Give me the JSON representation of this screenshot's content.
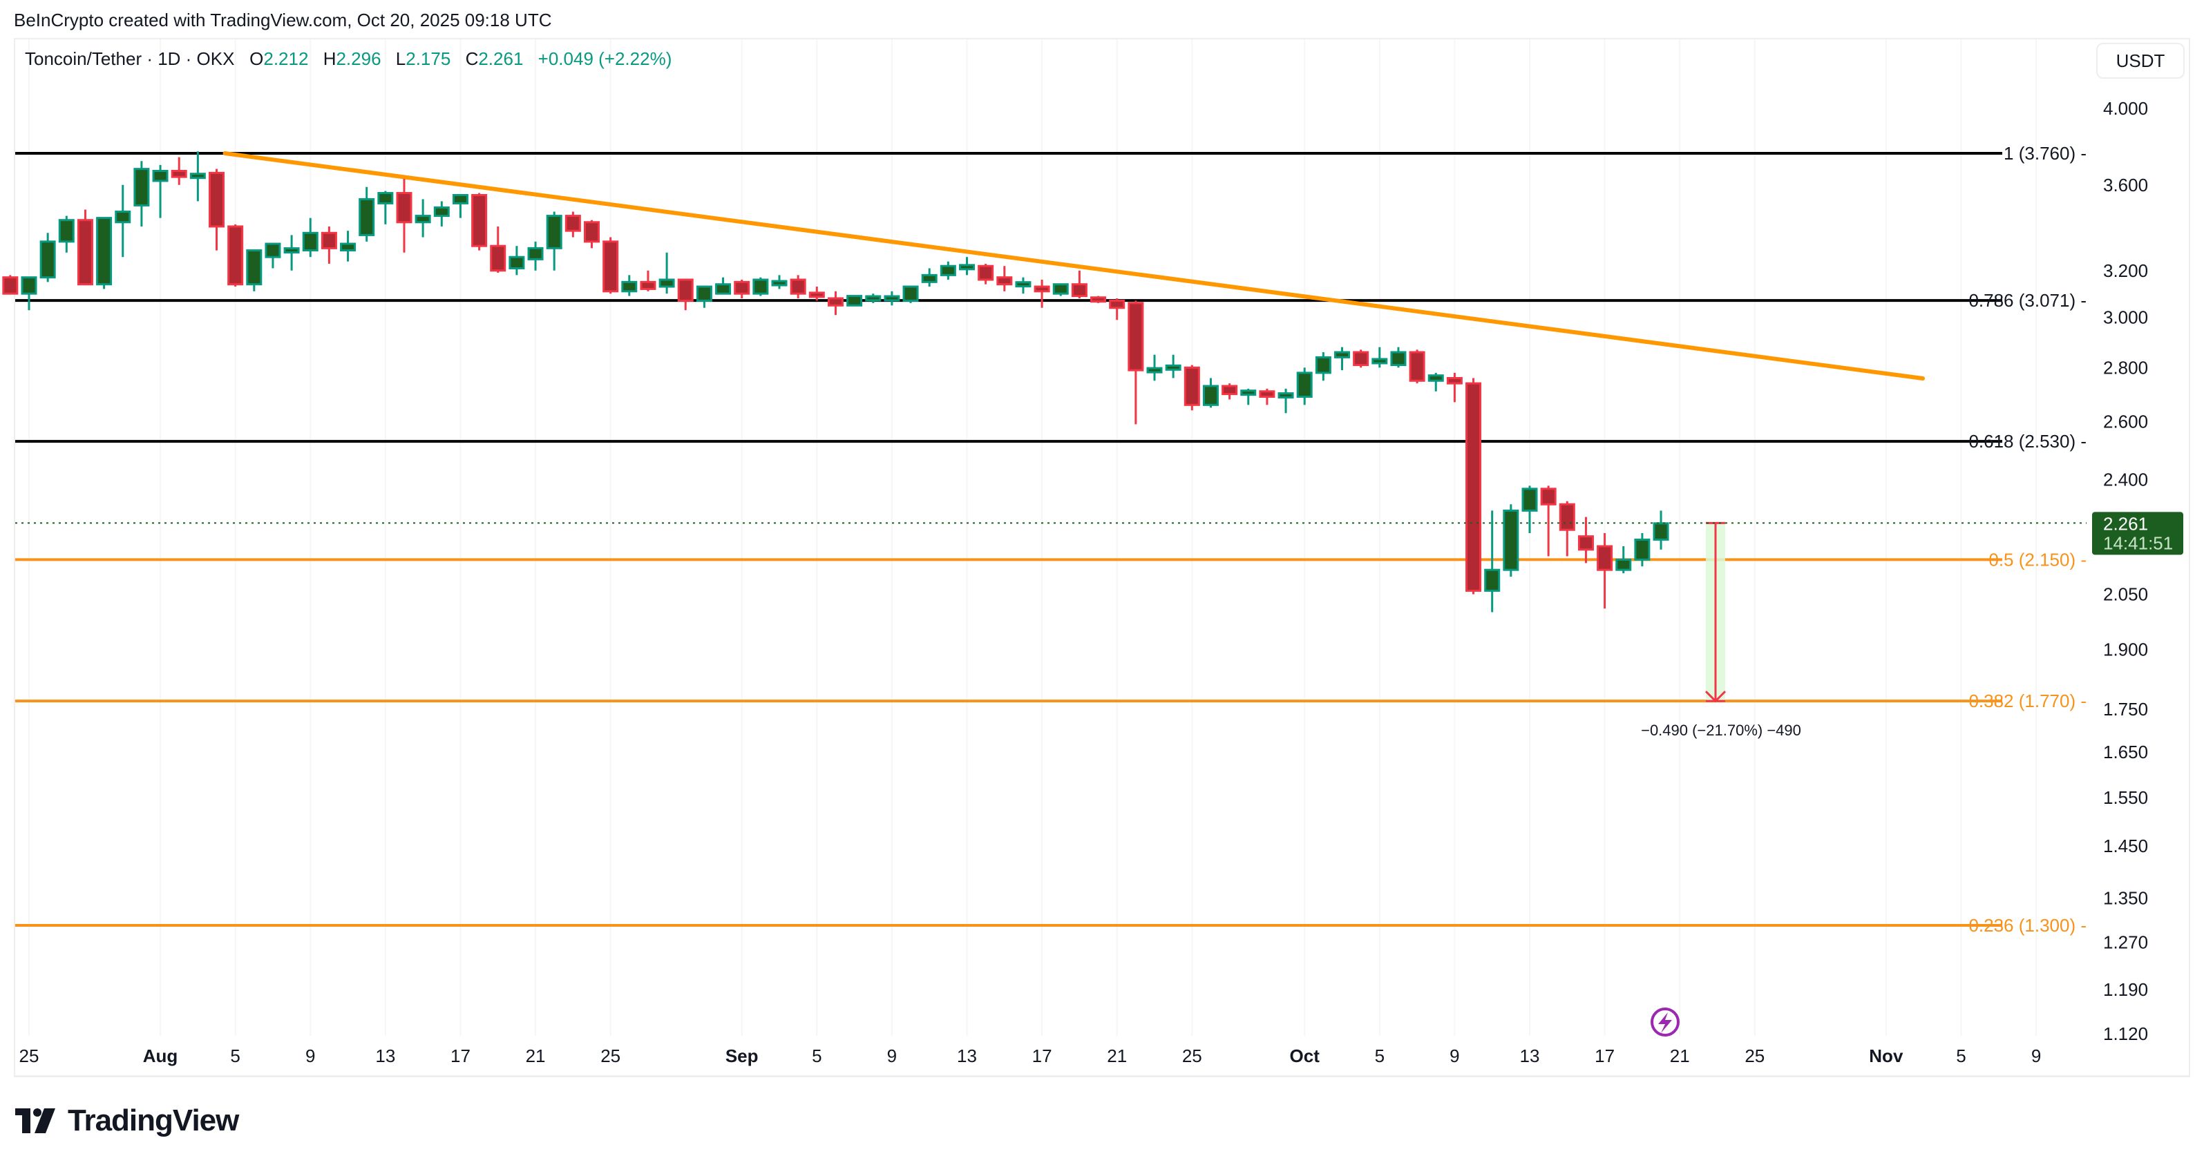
{
  "header": {
    "credit": "BeInCrypto created with TradingView.com, Oct 20, 2025 09:18 UTC"
  },
  "legend": {
    "symbol": "Toncoin/Tether · 1D · OKX",
    "open_label": "O",
    "open": "2.212",
    "high_label": "H",
    "high": "2.296",
    "low_label": "L",
    "low": "2.175",
    "close_label": "C",
    "close": "2.261",
    "change": "+0.049 (+2.22%)"
  },
  "currency_button": "USDT",
  "price_tag": {
    "price": "2.261",
    "countdown": "14:41:51",
    "color": "#1b5e20"
  },
  "measure": {
    "label": "−0.490 (−21.70%) −490",
    "from": 2.261,
    "to": 1.77
  },
  "branding": {
    "name": "TradingView"
  },
  "colors": {
    "up_body": "#1b5e20",
    "up_border": "#089981",
    "down_body": "#b22833",
    "down_border": "#f23645",
    "fib_black": "#000000",
    "fib_orange": "#f7931a",
    "trendline": "#ff9800",
    "event_icon": "#9c27b0"
  },
  "chart_data": {
    "type": "candlestick",
    "title": "Toncoin/Tether · 1D · OKX",
    "xlabel": "",
    "ylabel": "USDT",
    "yscale": "log",
    "ylim": [
      1.1,
      4.1
    ],
    "y_ticks": [
      "4.000",
      "3.600",
      "3.200",
      "3.000",
      "2.800",
      "2.600",
      "2.400",
      "2.050",
      "1.900",
      "1.750",
      "1.650",
      "1.550",
      "1.450",
      "1.350",
      "1.270",
      "1.190",
      "1.120"
    ],
    "x_ticks": [
      {
        "label": "25",
        "day": 0,
        "month": false
      },
      {
        "label": "Aug",
        "day": 7,
        "month": true
      },
      {
        "label": "5",
        "day": 11,
        "month": false
      },
      {
        "label": "9",
        "day": 15,
        "month": false
      },
      {
        "label": "13",
        "day": 19,
        "month": false
      },
      {
        "label": "17",
        "day": 23,
        "month": false
      },
      {
        "label": "21",
        "day": 27,
        "month": false
      },
      {
        "label": "25",
        "day": 31,
        "month": false
      },
      {
        "label": "Sep",
        "day": 38,
        "month": true
      },
      {
        "label": "5",
        "day": 42,
        "month": false
      },
      {
        "label": "9",
        "day": 46,
        "month": false
      },
      {
        "label": "13",
        "day": 50,
        "month": false
      },
      {
        "label": "17",
        "day": 54,
        "month": false
      },
      {
        "label": "21",
        "day": 58,
        "month": false
      },
      {
        "label": "25",
        "day": 62,
        "month": false
      },
      {
        "label": "Oct",
        "day": 68,
        "month": true
      },
      {
        "label": "5",
        "day": 72,
        "month": false
      },
      {
        "label": "9",
        "day": 76,
        "month": false
      },
      {
        "label": "13",
        "day": 80,
        "month": false
      },
      {
        "label": "17",
        "day": 84,
        "month": false
      },
      {
        "label": "21",
        "day": 88,
        "month": false
      },
      {
        "label": "25",
        "day": 92,
        "month": false
      },
      {
        "label": "Nov",
        "day": 99,
        "month": true
      },
      {
        "label": "5",
        "day": 103,
        "month": false
      },
      {
        "label": "9",
        "day": 107,
        "month": false
      }
    ],
    "fib_levels": [
      {
        "ratio": "1",
        "price": 3.76,
        "label": "1 (3.760)",
        "color": "#000000"
      },
      {
        "ratio": "0.786",
        "price": 3.071,
        "label": "0.786 (3.071)",
        "color": "#000000"
      },
      {
        "ratio": "0.618",
        "price": 2.53,
        "label": "0.618 (2.530)",
        "color": "#000000"
      },
      {
        "ratio": "0.5",
        "price": 2.15,
        "label": "0.5 (2.150)",
        "color": "#f7931a"
      },
      {
        "ratio": "0.382",
        "price": 1.77,
        "label": "0.382 (1.770)",
        "color": "#f7931a"
      },
      {
        "ratio": "0.236",
        "price": 1.3,
        "label": "0.236 (1.300)",
        "color": "#f7931a"
      }
    ],
    "trendline": {
      "start": {
        "day": 10,
        "price": 3.76
      },
      "end": {
        "day": 100,
        "price": 2.76
      },
      "color": "#ff9800"
    },
    "last_price": 2.261,
    "candles_start_date": "Jul 24",
    "candles": [
      {
        "d": -1,
        "o": 3.17,
        "h": 3.18,
        "l": 3.1,
        "c": 3.1
      },
      {
        "d": 0,
        "o": 3.1,
        "h": 3.17,
        "l": 3.03,
        "c": 3.17
      },
      {
        "d": 1,
        "o": 3.17,
        "h": 3.37,
        "l": 3.15,
        "c": 3.33
      },
      {
        "d": 2,
        "o": 3.33,
        "h": 3.45,
        "l": 3.28,
        "c": 3.43
      },
      {
        "d": 3,
        "o": 3.43,
        "h": 3.48,
        "l": 3.14,
        "c": 3.14
      },
      {
        "d": 4,
        "o": 3.14,
        "h": 3.43,
        "l": 3.12,
        "c": 3.44
      },
      {
        "d": 5,
        "o": 3.42,
        "h": 3.6,
        "l": 3.26,
        "c": 3.47
      },
      {
        "d": 6,
        "o": 3.5,
        "h": 3.72,
        "l": 3.4,
        "c": 3.68
      },
      {
        "d": 7,
        "o": 3.62,
        "h": 3.7,
        "l": 3.44,
        "c": 3.67
      },
      {
        "d": 8,
        "o": 3.67,
        "h": 3.74,
        "l": 3.6,
        "c": 3.64
      },
      {
        "d": 9,
        "o": 3.64,
        "h": 3.77,
        "l": 3.52,
        "c": 3.65
      },
      {
        "d": 10,
        "o": 3.66,
        "h": 3.68,
        "l": 3.29,
        "c": 3.4
      },
      {
        "d": 11,
        "o": 3.4,
        "h": 3.41,
        "l": 3.13,
        "c": 3.14
      },
      {
        "d": 12,
        "o": 3.14,
        "h": 3.23,
        "l": 3.11,
        "c": 3.29
      },
      {
        "d": 13,
        "o": 3.26,
        "h": 3.32,
        "l": 3.21,
        "c": 3.32
      },
      {
        "d": 14,
        "o": 3.29,
        "h": 3.36,
        "l": 3.2,
        "c": 3.29
      },
      {
        "d": 15,
        "o": 3.29,
        "h": 3.44,
        "l": 3.26,
        "c": 3.37
      },
      {
        "d": 16,
        "o": 3.37,
        "h": 3.4,
        "l": 3.23,
        "c": 3.3
      },
      {
        "d": 17,
        "o": 3.29,
        "h": 3.38,
        "l": 3.24,
        "c": 3.32
      },
      {
        "d": 18,
        "o": 3.36,
        "h": 3.59,
        "l": 3.33,
        "c": 3.53
      },
      {
        "d": 19,
        "o": 3.51,
        "h": 3.57,
        "l": 3.41,
        "c": 3.56
      },
      {
        "d": 20,
        "o": 3.56,
        "h": 3.63,
        "l": 3.28,
        "c": 3.42
      },
      {
        "d": 21,
        "o": 3.42,
        "h": 3.53,
        "l": 3.35,
        "c": 3.45
      },
      {
        "d": 22,
        "o": 3.45,
        "h": 3.52,
        "l": 3.4,
        "c": 3.49
      },
      {
        "d": 23,
        "o": 3.51,
        "h": 3.55,
        "l": 3.44,
        "c": 3.55
      },
      {
        "d": 24,
        "o": 3.55,
        "h": 3.56,
        "l": 3.29,
        "c": 3.31
      },
      {
        "d": 25,
        "o": 3.31,
        "h": 3.4,
        "l": 3.19,
        "c": 3.2
      },
      {
        "d": 26,
        "o": 3.21,
        "h": 3.31,
        "l": 3.18,
        "c": 3.26
      },
      {
        "d": 27,
        "o": 3.25,
        "h": 3.33,
        "l": 3.2,
        "c": 3.3
      },
      {
        "d": 28,
        "o": 3.3,
        "h": 3.47,
        "l": 3.2,
        "c": 3.45
      },
      {
        "d": 29,
        "o": 3.45,
        "h": 3.47,
        "l": 3.35,
        "c": 3.38
      },
      {
        "d": 30,
        "o": 3.42,
        "h": 3.43,
        "l": 3.3,
        "c": 3.33
      },
      {
        "d": 31,
        "o": 3.33,
        "h": 3.35,
        "l": 3.1,
        "c": 3.11
      },
      {
        "d": 32,
        "o": 3.11,
        "h": 3.18,
        "l": 3.09,
        "c": 3.15
      },
      {
        "d": 33,
        "o": 3.15,
        "h": 3.2,
        "l": 3.11,
        "c": 3.12
      },
      {
        "d": 34,
        "o": 3.13,
        "h": 3.28,
        "l": 3.1,
        "c": 3.16
      },
      {
        "d": 35,
        "o": 3.16,
        "h": 3.16,
        "l": 3.03,
        "c": 3.07
      },
      {
        "d": 36,
        "o": 3.07,
        "h": 3.12,
        "l": 3.04,
        "c": 3.13
      },
      {
        "d": 37,
        "o": 3.1,
        "h": 3.17,
        "l": 3.1,
        "c": 3.14
      },
      {
        "d": 38,
        "o": 3.15,
        "h": 3.16,
        "l": 3.08,
        "c": 3.1
      },
      {
        "d": 39,
        "o": 3.1,
        "h": 3.17,
        "l": 3.09,
        "c": 3.16
      },
      {
        "d": 40,
        "o": 3.14,
        "h": 3.18,
        "l": 3.12,
        "c": 3.15
      },
      {
        "d": 41,
        "o": 3.16,
        "h": 3.18,
        "l": 3.08,
        "c": 3.1
      },
      {
        "d": 42,
        "o": 3.1,
        "h": 3.13,
        "l": 3.07,
        "c": 3.09
      },
      {
        "d": 43,
        "o": 3.08,
        "h": 3.11,
        "l": 3.01,
        "c": 3.05
      },
      {
        "d": 44,
        "o": 3.05,
        "h": 3.09,
        "l": 3.05,
        "c": 3.09
      },
      {
        "d": 45,
        "o": 3.08,
        "h": 3.1,
        "l": 3.06,
        "c": 3.08
      },
      {
        "d": 46,
        "o": 3.08,
        "h": 3.11,
        "l": 3.05,
        "c": 3.08
      },
      {
        "d": 47,
        "o": 3.07,
        "h": 3.13,
        "l": 3.06,
        "c": 3.13
      },
      {
        "d": 48,
        "o": 3.15,
        "h": 3.21,
        "l": 3.13,
        "c": 3.18
      },
      {
        "d": 49,
        "o": 3.18,
        "h": 3.24,
        "l": 3.16,
        "c": 3.22
      },
      {
        "d": 50,
        "o": 3.21,
        "h": 3.26,
        "l": 3.18,
        "c": 3.22
      },
      {
        "d": 51,
        "o": 3.22,
        "h": 3.23,
        "l": 3.14,
        "c": 3.16
      },
      {
        "d": 52,
        "o": 3.17,
        "h": 3.22,
        "l": 3.11,
        "c": 3.14
      },
      {
        "d": 53,
        "o": 3.14,
        "h": 3.17,
        "l": 3.1,
        "c": 3.14
      },
      {
        "d": 54,
        "o": 3.13,
        "h": 3.16,
        "l": 3.04,
        "c": 3.11
      },
      {
        "d": 55,
        "o": 3.1,
        "h": 3.14,
        "l": 3.09,
        "c": 3.14
      },
      {
        "d": 56,
        "o": 3.14,
        "h": 3.2,
        "l": 3.08,
        "c": 3.09
      },
      {
        "d": 57,
        "o": 3.08,
        "h": 3.09,
        "l": 3.06,
        "c": 3.07
      },
      {
        "d": 58,
        "o": 3.07,
        "h": 3.08,
        "l": 2.99,
        "c": 3.04
      },
      {
        "d": 59,
        "o": 3.06,
        "h": 3.07,
        "l": 2.59,
        "c": 2.79
      },
      {
        "d": 60,
        "o": 2.79,
        "h": 2.85,
        "l": 2.75,
        "c": 2.79
      },
      {
        "d": 61,
        "o": 2.8,
        "h": 2.85,
        "l": 2.76,
        "c": 2.8
      },
      {
        "d": 62,
        "o": 2.8,
        "h": 2.81,
        "l": 2.64,
        "c": 2.66
      },
      {
        "d": 63,
        "o": 2.66,
        "h": 2.76,
        "l": 2.65,
        "c": 2.73
      },
      {
        "d": 64,
        "o": 2.73,
        "h": 2.74,
        "l": 2.68,
        "c": 2.7
      },
      {
        "d": 65,
        "o": 2.7,
        "h": 2.72,
        "l": 2.66,
        "c": 2.71
      },
      {
        "d": 66,
        "o": 2.71,
        "h": 2.72,
        "l": 2.66,
        "c": 2.69
      },
      {
        "d": 67,
        "o": 2.69,
        "h": 2.72,
        "l": 2.63,
        "c": 2.7
      },
      {
        "d": 68,
        "o": 2.69,
        "h": 2.8,
        "l": 2.66,
        "c": 2.78
      },
      {
        "d": 69,
        "o": 2.78,
        "h": 2.86,
        "l": 2.75,
        "c": 2.84
      },
      {
        "d": 70,
        "o": 2.84,
        "h": 2.88,
        "l": 2.79,
        "c": 2.86
      },
      {
        "d": 71,
        "o": 2.86,
        "h": 2.87,
        "l": 2.8,
        "c": 2.81
      },
      {
        "d": 72,
        "o": 2.82,
        "h": 2.88,
        "l": 2.8,
        "c": 2.83
      },
      {
        "d": 73,
        "o": 2.81,
        "h": 2.88,
        "l": 2.8,
        "c": 2.86
      },
      {
        "d": 74,
        "o": 2.86,
        "h": 2.87,
        "l": 2.74,
        "c": 2.75
      },
      {
        "d": 75,
        "o": 2.75,
        "h": 2.78,
        "l": 2.71,
        "c": 2.77
      },
      {
        "d": 76,
        "o": 2.76,
        "h": 2.78,
        "l": 2.67,
        "c": 2.74
      },
      {
        "d": 77,
        "o": 2.74,
        "h": 2.76,
        "l": 2.05,
        "c": 2.06
      },
      {
        "d": 78,
        "o": 2.06,
        "h": 2.3,
        "l": 2.0,
        "c": 2.12
      },
      {
        "d": 79,
        "o": 2.12,
        "h": 2.32,
        "l": 2.1,
        "c": 2.3
      },
      {
        "d": 80,
        "o": 2.3,
        "h": 2.38,
        "l": 2.23,
        "c": 2.37
      },
      {
        "d": 81,
        "o": 2.37,
        "h": 2.38,
        "l": 2.16,
        "c": 2.32
      },
      {
        "d": 82,
        "o": 2.32,
        "h": 2.33,
        "l": 2.16,
        "c": 2.24
      },
      {
        "d": 83,
        "o": 2.22,
        "h": 2.28,
        "l": 2.14,
        "c": 2.18
      },
      {
        "d": 84,
        "o": 2.19,
        "h": 2.23,
        "l": 2.01,
        "c": 2.12
      },
      {
        "d": 85,
        "o": 2.12,
        "h": 2.19,
        "l": 2.11,
        "c": 2.15
      },
      {
        "d": 86,
        "o": 2.15,
        "h": 2.23,
        "l": 2.13,
        "c": 2.21
      },
      {
        "d": 87,
        "o": 2.21,
        "h": 2.3,
        "l": 2.18,
        "c": 2.26
      }
    ]
  }
}
